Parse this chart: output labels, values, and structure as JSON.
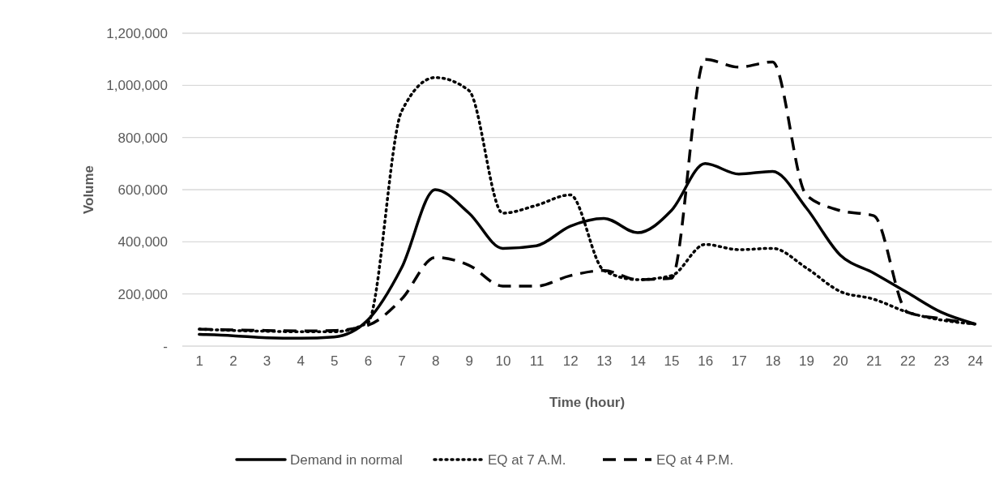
{
  "chart_data": {
    "type": "line",
    "xlabel": "Time (hour)",
    "ylabel": "Volume",
    "x": [
      1,
      2,
      3,
      4,
      5,
      6,
      7,
      8,
      9,
      10,
      11,
      12,
      13,
      14,
      15,
      16,
      17,
      18,
      19,
      20,
      21,
      22,
      23,
      24
    ],
    "xlim": [
      0.5,
      24.5
    ],
    "xticks": [
      1,
      2,
      3,
      4,
      5,
      6,
      7,
      8,
      9,
      10,
      11,
      12,
      13,
      14,
      15,
      16,
      17,
      18,
      19,
      20,
      21,
      22,
      23,
      24
    ],
    "series": [
      {
        "name": "Demand in normal",
        "color": "#000000",
        "line_style": "solid",
        "values": [
          45000,
          40000,
          32000,
          30000,
          35000,
          100000,
          300000,
          600000,
          510000,
          375000,
          385000,
          460000,
          490000,
          435000,
          520000,
          700000,
          660000,
          670000,
          530000,
          350000,
          280000,
          205000,
          130000,
          85000
        ]
      },
      {
        "name": "EQ at 7 A.M.",
        "color": "#000000",
        "line_style": "dotted",
        "values": [
          65000,
          60000,
          57000,
          55000,
          55000,
          90000,
          900000,
          1030000,
          980000,
          510000,
          540000,
          580000,
          290000,
          255000,
          270000,
          390000,
          370000,
          375000,
          300000,
          210000,
          180000,
          130000,
          100000,
          85000
        ]
      },
      {
        "name": "EQ at 4 P.M.",
        "color": "#000000",
        "line_style": "dashed",
        "values": [
          65000,
          62000,
          60000,
          58000,
          60000,
          80000,
          180000,
          340000,
          310000,
          230000,
          230000,
          270000,
          290000,
          255000,
          260000,
          1100000,
          1070000,
          1090000,
          580000,
          520000,
          500000,
          130000,
          105000,
          85000
        ]
      }
    ],
    "ylim": [
      0,
      1200000
    ],
    "yticks": [
      {
        "value": 0,
        "label": "-"
      },
      {
        "value": 200000,
        "label": "200,000"
      },
      {
        "value": 400000,
        "label": "400,000"
      },
      {
        "value": 600000,
        "label": "600,000"
      },
      {
        "value": 800000,
        "label": "800,000"
      },
      {
        "value": 1000000,
        "label": "1,000,000"
      },
      {
        "value": 1200000,
        "label": "1,200,000"
      }
    ],
    "grid": "y",
    "legend": "bottom",
    "marker": "none"
  }
}
